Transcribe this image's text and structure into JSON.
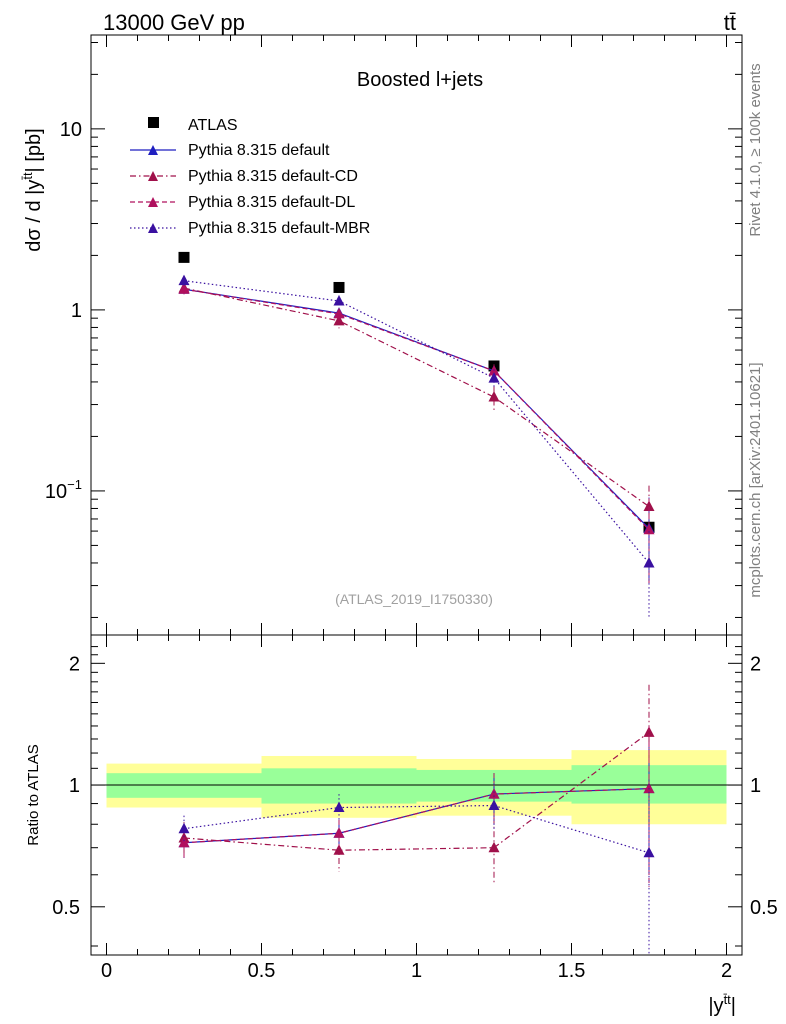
{
  "header": {
    "energy_label": "13000 GeV pp",
    "process_label": "tt̄"
  },
  "side_labels": {
    "rivet": "Rivet 4.1.0, ≥ 100k events",
    "mcplots": "mcplots.cern.ch [arXiv:2401.10621]"
  },
  "colors": {
    "atlas": "#000000",
    "default": "#1f1fc0",
    "cd": "#a0104a",
    "dl": "#b0105e",
    "mbr": "#3a10a0",
    "band_inner": "#99ff99",
    "band_outer": "#ffff99"
  },
  "chart_data": [
    {
      "type": "line",
      "title": "Boosted l+jets",
      "watermark": "(ATLAS_2019_I1750330)",
      "ylabel": "dσ / d |y",
      "ylabel_sup": "t̄t",
      "ylabel_suffix": "| [pb]",
      "yscale": "log",
      "ylim": [
        0.016,
        33
      ],
      "xlim": [
        -0.05,
        2.05
      ],
      "y_ticks": [
        {
          "value": 0.1,
          "base": "10",
          "exp": "−1"
        },
        {
          "value": 1,
          "base": "1",
          "exp": ""
        },
        {
          "value": 10,
          "base": "10",
          "exp": ""
        }
      ],
      "x": [
        0.25,
        0.75,
        1.25,
        1.75
      ],
      "series": [
        {
          "name": "ATLAS",
          "key": "atlas",
          "marker": "square",
          "values": [
            1.95,
            1.33,
            0.49,
            0.063
          ]
        },
        {
          "name": "Pythia 8.315 default",
          "key": "default",
          "marker": "triangle",
          "line": "solid",
          "values": [
            1.3,
            0.96,
            0.46,
            0.062
          ],
          "err": [
            0.08,
            0.06,
            0.03,
            0.03
          ]
        },
        {
          "name": "Pythia 8.315 default-CD",
          "key": "cd",
          "marker": "triangle",
          "line": "dashdot",
          "values": [
            1.32,
            0.87,
            0.33,
            0.082
          ],
          "err": [
            0.09,
            0.08,
            0.05,
            0.025
          ]
        },
        {
          "name": "Pythia 8.315 default-DL",
          "key": "dl",
          "marker": "triangle",
          "line": "dashed",
          "values": [
            1.3,
            0.95,
            0.46,
            0.061
          ],
          "err": [
            0.08,
            0.07,
            0.04,
            0.03
          ]
        },
        {
          "name": "Pythia 8.315 default-MBR",
          "key": "mbr",
          "marker": "triangle",
          "line": "dotted",
          "values": [
            1.45,
            1.12,
            0.42,
            0.04
          ],
          "err": [
            0.09,
            0.08,
            0.05,
            0.02
          ]
        }
      ]
    },
    {
      "type": "line",
      "ylabel": "Ratio to ATLAS",
      "xlabel": "|y",
      "xlabel_sup": "t̄t",
      "xlabel_suffix": "|",
      "ylim": [
        0.38,
        2.35
      ],
      "xlim": [
        -0.05,
        2.05
      ],
      "y_ticks": [
        0.5,
        1,
        2
      ],
      "x_ticks": [
        0,
        0.5,
        1,
        1.5,
        2
      ],
      "x_tick_labels": [
        "0",
        "0.5",
        "1",
        "1.5",
        "2"
      ],
      "x": [
        0.25,
        0.75,
        1.25,
        1.75
      ],
      "bands": [
        {
          "x0": 0.0,
          "x1": 0.5,
          "inner": [
            0.93,
            1.07
          ],
          "outer": [
            0.88,
            1.13
          ]
        },
        {
          "x0": 0.5,
          "x1": 1.0,
          "inner": [
            0.9,
            1.1
          ],
          "outer": [
            0.83,
            1.18
          ]
        },
        {
          "x0": 1.0,
          "x1": 1.5,
          "inner": [
            0.91,
            1.09
          ],
          "outer": [
            0.84,
            1.16
          ]
        },
        {
          "x0": 1.5,
          "x1": 2.0,
          "inner": [
            0.9,
            1.12
          ],
          "outer": [
            0.8,
            1.22
          ]
        }
      ],
      "series": [
        {
          "name": "Pythia 8.315 default",
          "key": "default",
          "line": "solid",
          "values": [
            0.72,
            0.76,
            0.95,
            0.98
          ],
          "err": [
            0.06,
            0.05,
            0.12,
            0.38
          ]
        },
        {
          "name": "Pythia 8.315 default-CD",
          "key": "cd",
          "line": "dashdot",
          "values": [
            0.74,
            0.69,
            0.7,
            1.35
          ],
          "err": [
            0.07,
            0.08,
            0.13,
            0.42
          ]
        },
        {
          "name": "Pythia 8.315 default-DL",
          "key": "dl",
          "line": "dashed",
          "values": [
            0.72,
            0.76,
            0.95,
            0.98
          ],
          "err": [
            0.06,
            0.06,
            0.12,
            0.42
          ]
        },
        {
          "name": "Pythia 8.315 default-MBR",
          "key": "mbr",
          "line": "dotted",
          "values": [
            0.78,
            0.88,
            0.89,
            0.68
          ],
          "err": [
            0.06,
            0.07,
            0.12,
            0.35
          ]
        }
      ]
    }
  ]
}
